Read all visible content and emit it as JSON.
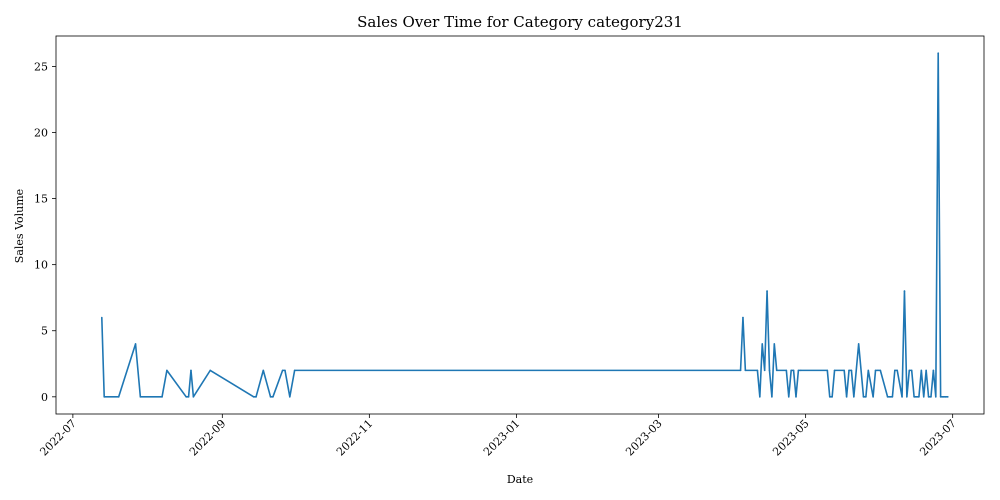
{
  "chart_data": {
    "type": "line",
    "title": "Sales Over Time for Category category231",
    "xlabel": "Date",
    "ylabel": "Sales Volume",
    "xlim": [
      "2022-06-24",
      "2023-07-14"
    ],
    "ylim": [
      -1.3,
      27.3
    ],
    "grid": false,
    "line_color": "#1f77b4",
    "x_ticks": [
      {
        "date": "2022-07-01",
        "label": "2022-07"
      },
      {
        "date": "2022-09-01",
        "label": "2022-09"
      },
      {
        "date": "2022-11-01",
        "label": "2022-11"
      },
      {
        "date": "2023-01-01",
        "label": "2023-01"
      },
      {
        "date": "2023-03-01",
        "label": "2023-03"
      },
      {
        "date": "2023-05-01",
        "label": "2023-05"
      },
      {
        "date": "2023-07-01",
        "label": "2023-07"
      }
    ],
    "y_ticks": [
      0,
      5,
      10,
      15,
      20,
      25
    ],
    "series": [
      {
        "name": "",
        "x": [
          "2022-07-13",
          "2022-07-14",
          "2022-07-20",
          "2022-07-27",
          "2022-07-29",
          "2022-08-07",
          "2022-08-09",
          "2022-08-17",
          "2022-08-18",
          "2022-08-19",
          "2022-08-20",
          "2022-08-27",
          "2022-09-14",
          "2022-09-15",
          "2022-09-18",
          "2022-09-21",
          "2022-09-22",
          "2022-09-26",
          "2022-09-27",
          "2022-09-29",
          "2022-10-01",
          "2023-04-04",
          "2023-04-05",
          "2023-04-06",
          "2023-04-11",
          "2023-04-12",
          "2023-04-13",
          "2023-04-14",
          "2023-04-15",
          "2023-04-16",
          "2023-04-17",
          "2023-04-18",
          "2023-04-19",
          "2023-04-23",
          "2023-04-24",
          "2023-04-25",
          "2023-04-26",
          "2023-04-27",
          "2023-04-28",
          "2023-04-29",
          "2023-05-10",
          "2023-05-11",
          "2023-05-12",
          "2023-05-13",
          "2023-05-17",
          "2023-05-18",
          "2023-05-19",
          "2023-05-20",
          "2023-05-21",
          "2023-05-22",
          "2023-05-23",
          "2023-05-25",
          "2023-05-26",
          "2023-05-27",
          "2023-05-29",
          "2023-05-30",
          "2023-05-31",
          "2023-06-01",
          "2023-06-04",
          "2023-06-05",
          "2023-06-06",
          "2023-06-07",
          "2023-06-08",
          "2023-06-10",
          "2023-06-11",
          "2023-06-12",
          "2023-06-13",
          "2023-06-14",
          "2023-06-15",
          "2023-06-17",
          "2023-06-18",
          "2023-06-19",
          "2023-06-20",
          "2023-06-21",
          "2023-06-22",
          "2023-06-23",
          "2023-06-24",
          "2023-06-25",
          "2023-06-26",
          "2023-06-27",
          "2023-06-28",
          "2023-06-29"
        ],
        "values": [
          6,
          0,
          0,
          4,
          0,
          0,
          2,
          0,
          0,
          2,
          0,
          2,
          0,
          0,
          2,
          0,
          0,
          2,
          2,
          0,
          2,
          2,
          6,
          2,
          2,
          0,
          4,
          2,
          8,
          2,
          0,
          4,
          2,
          2,
          0,
          2,
          2,
          0,
          2,
          2,
          2,
          0,
          0,
          2,
          2,
          0,
          2,
          2,
          0,
          2,
          4,
          0,
          0,
          2,
          0,
          2,
          2,
          2,
          0,
          0,
          0,
          2,
          2,
          0,
          8,
          0,
          2,
          2,
          0,
          0,
          2,
          0,
          2,
          0,
          0,
          2,
          0,
          26,
          0,
          0,
          0,
          0
        ]
      }
    ]
  }
}
